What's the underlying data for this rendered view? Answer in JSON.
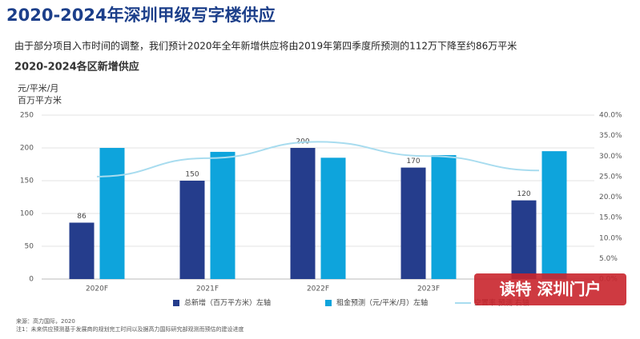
{
  "chart_data": {
    "type": "bar-line",
    "title": "2020-2024年深圳甲级写字楼供应",
    "subtitle": "由于部分项目入市时间的调整，我们预计2020年全年新增供应将由2019年第四季度所预测的112万下降至约86万平米",
    "chart_title": "2020-2024各区新增供应",
    "ylabel": [
      "元/平米/月",
      "百万平方米"
    ],
    "categories": [
      "2020F",
      "2021F",
      "2022F",
      "2023F",
      null
    ],
    "series": [
      {
        "name": "总新增（百万平方米）左轴",
        "type": "bar",
        "color": "#253d8c",
        "values": [
          86,
          150,
          200,
          170,
          120
        ],
        "show_labels": true
      },
      {
        "name": "租金预测（元/平米/月）左轴",
        "type": "bar",
        "color": "#0ea4dc",
        "values": [
          200,
          194,
          185,
          189,
          195
        ]
      },
      {
        "name": "空置率 预测 右轴",
        "type": "line",
        "axis": "y2",
        "color": "#a8dcef",
        "values": [
          25,
          29.5,
          33.5,
          30,
          26.5
        ]
      }
    ],
    "ylim": [
      0,
      250
    ],
    "yticks": [
      0,
      50,
      100,
      150,
      200,
      250
    ],
    "y2lim": [
      0,
      40
    ],
    "y2ticks": [
      {
        "value": 0,
        "label": "0.0%"
      },
      {
        "value": 5,
        "label": "5.0%"
      },
      {
        "value": 10,
        "label": "10.0%"
      },
      {
        "value": 15,
        "label": "15.0%"
      },
      {
        "value": 20,
        "label": "20.0%"
      },
      {
        "value": 25,
        "label": "25.0%"
      },
      {
        "value": 30,
        "label": "30.0%"
      },
      {
        "value": 35,
        "label": "35.0%"
      },
      {
        "value": 40,
        "label": "40.0%"
      }
    ],
    "grid": true,
    "source": "来源：高力国际，2020",
    "note": "注1：未来供应预测基于发展商的规划完工时间以及据高力国际研究部观测而预估的建设进度",
    "watermark": "读特 深圳门户"
  }
}
